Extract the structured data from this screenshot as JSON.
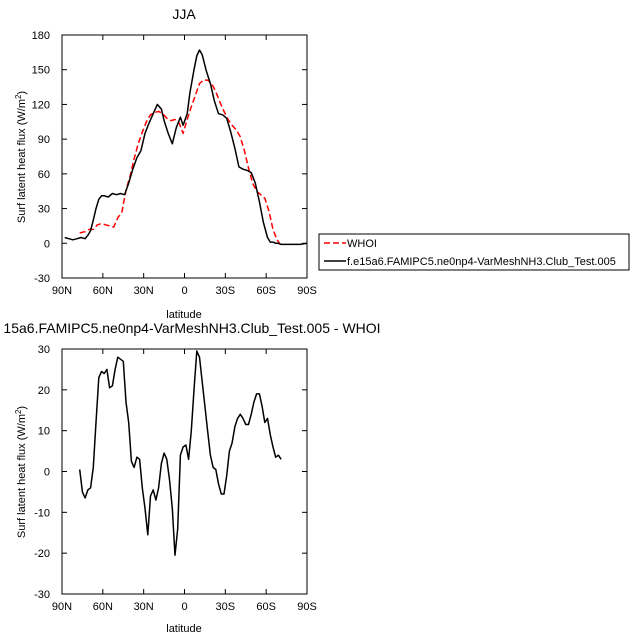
{
  "chart_data": [
    {
      "type": "line",
      "title": "JJA",
      "xlabel": "latitude",
      "ylabel": "Surf latent heat flux (W/m",
      "ylabel_sup": "2",
      "ylabel_close": ")",
      "xlim": [
        90,
        -90
      ],
      "ylim": [
        -30,
        180
      ],
      "xticks": [
        90,
        60,
        30,
        0,
        -30,
        -60,
        -90
      ],
      "xtick_labels": [
        "90N",
        "60N",
        "30N",
        "0",
        "30S",
        "60S",
        "90S"
      ],
      "yticks": [
        -30,
        0,
        30,
        60,
        90,
        120,
        150,
        180
      ],
      "ytick_labels": [
        "-30",
        "0",
        "30",
        "60",
        "90",
        "120",
        "150",
        "180"
      ],
      "grid": false,
      "legend_position": "right",
      "series": [
        {
          "name": "WHOI",
          "color": "#ff0000",
          "dash": "dashed",
          "x": [
            77,
            73,
            70,
            67,
            64,
            61,
            58,
            55,
            52,
            49,
            46,
            43,
            40,
            37,
            34,
            31,
            28,
            25,
            22,
            19,
            16,
            13,
            10,
            7,
            4,
            1,
            -2,
            -5,
            -8,
            -11,
            -14,
            -17,
            -20,
            -23,
            -26,
            -29,
            -32,
            -35,
            -38,
            -41,
            -44,
            -47,
            -50,
            -53,
            -56,
            -59,
            -62,
            -65,
            -68,
            -71
          ],
          "y": [
            9,
            10,
            12,
            12,
            16,
            17,
            16,
            15,
            14,
            22,
            27,
            46,
            58,
            73,
            86,
            96,
            105,
            111,
            113,
            114,
            112,
            108,
            106,
            107,
            104,
            95,
            107,
            118,
            128,
            138,
            141,
            141,
            138,
            131,
            122,
            114,
            107,
            102,
            98,
            92,
            80,
            65,
            52,
            45,
            42,
            39,
            28,
            12,
            3,
            -2
          ]
        },
        {
          "name": "f.e15a6.FAMIPC5.ne0np4-VarMeshNH3.Club_Test.005",
          "color": "#000000",
          "dash": "solid",
          "x": [
            88,
            85,
            82,
            79,
            76,
            73,
            71,
            69,
            67,
            65,
            63,
            61,
            59,
            56,
            53,
            50,
            47,
            44,
            41,
            38,
            35,
            32,
            29,
            26,
            23,
            20,
            17,
            15,
            12,
            9,
            6,
            3,
            1,
            -2,
            -4,
            -7,
            -9,
            -11,
            -13,
            -16,
            -19,
            -22,
            -25,
            -28,
            -31,
            -34,
            -37,
            -40,
            -43,
            -46,
            -49,
            -52,
            -55,
            -58,
            -61,
            -63,
            -65,
            -67,
            -69,
            -71,
            -73,
            -76,
            -80,
            -85,
            -90
          ],
          "y": [
            5,
            4,
            3,
            4,
            5,
            4,
            7,
            11,
            20,
            30,
            38,
            41,
            41,
            40,
            43,
            42,
            43,
            42,
            52,
            64,
            74,
            80,
            95,
            104,
            112,
            120,
            116,
            106,
            95,
            86,
            100,
            109,
            102,
            112,
            130,
            150,
            162,
            167,
            163,
            149,
            138,
            123,
            112,
            111,
            108,
            96,
            82,
            66,
            64,
            63,
            61,
            52,
            36,
            18,
            5,
            1,
            1,
            0,
            0,
            -1,
            -1,
            -1,
            -1,
            -1,
            0
          ]
        }
      ]
    },
    {
      "type": "line",
      "title": "15a6.FAMIPC5.ne0np4-VarMeshNH3.Club_Test.005 - WHOI",
      "xlabel": "latitude",
      "ylabel": "Surf latent heat flux (W/m",
      "ylabel_sup": "2",
      "ylabel_close": ")",
      "xlim": [
        90,
        -90
      ],
      "ylim": [
        -30,
        30
      ],
      "xticks": [
        90,
        60,
        30,
        0,
        -30,
        -60,
        -90
      ],
      "xtick_labels": [
        "90N",
        "60N",
        "30N",
        "0",
        "30S",
        "60S",
        "90S"
      ],
      "yticks": [
        -30,
        -20,
        -10,
        0,
        10,
        20,
        30
      ],
      "ytick_labels": [
        "-30",
        "-20",
        "-10",
        "0",
        "10",
        "20",
        "30"
      ],
      "grid": false,
      "series": [
        {
          "color": "#000000",
          "dash": "solid",
          "x": [
            77,
            75,
            73,
            71,
            69,
            67,
            65,
            63,
            61,
            59,
            57,
            55,
            53,
            51,
            49,
            47,
            45,
            43,
            41,
            39,
            37,
            35,
            33,
            31,
            29,
            27,
            25,
            23,
            21,
            19,
            17,
            15,
            13,
            11,
            9,
            7,
            5,
            3,
            1,
            -1,
            -3,
            -5,
            -7,
            -9,
            -11,
            -13,
            -15,
            -17,
            -19,
            -21,
            -23,
            -25,
            -27,
            -29,
            -31,
            -33,
            -35,
            -37,
            -39,
            -41,
            -43,
            -45,
            -47,
            -49,
            -51,
            -53,
            -55,
            -57,
            -59,
            -61,
            -63,
            -65,
            -67,
            -69,
            -71
          ],
          "y": [
            0.5,
            -5,
            -6.5,
            -4.5,
            -4,
            1,
            12,
            23,
            24.5,
            24,
            25,
            20.5,
            21,
            25,
            28,
            27.5,
            27,
            17,
            12,
            2.5,
            1,
            3.5,
            3,
            -4,
            -9,
            -15.5,
            -6,
            -4.5,
            -7,
            -4,
            2,
            4.5,
            3,
            -2,
            -9,
            -20.5,
            -14,
            4,
            6,
            6.5,
            3,
            10,
            20,
            29.5,
            28,
            22,
            16,
            10,
            4,
            1,
            0.5,
            -3,
            -5.5,
            -5.5,
            -1,
            5,
            7,
            11,
            13,
            14,
            13,
            11.5,
            11.5,
            14,
            17,
            19,
            19,
            16,
            12,
            13,
            9,
            6,
            3.5,
            4,
            3
          ]
        }
      ]
    }
  ]
}
